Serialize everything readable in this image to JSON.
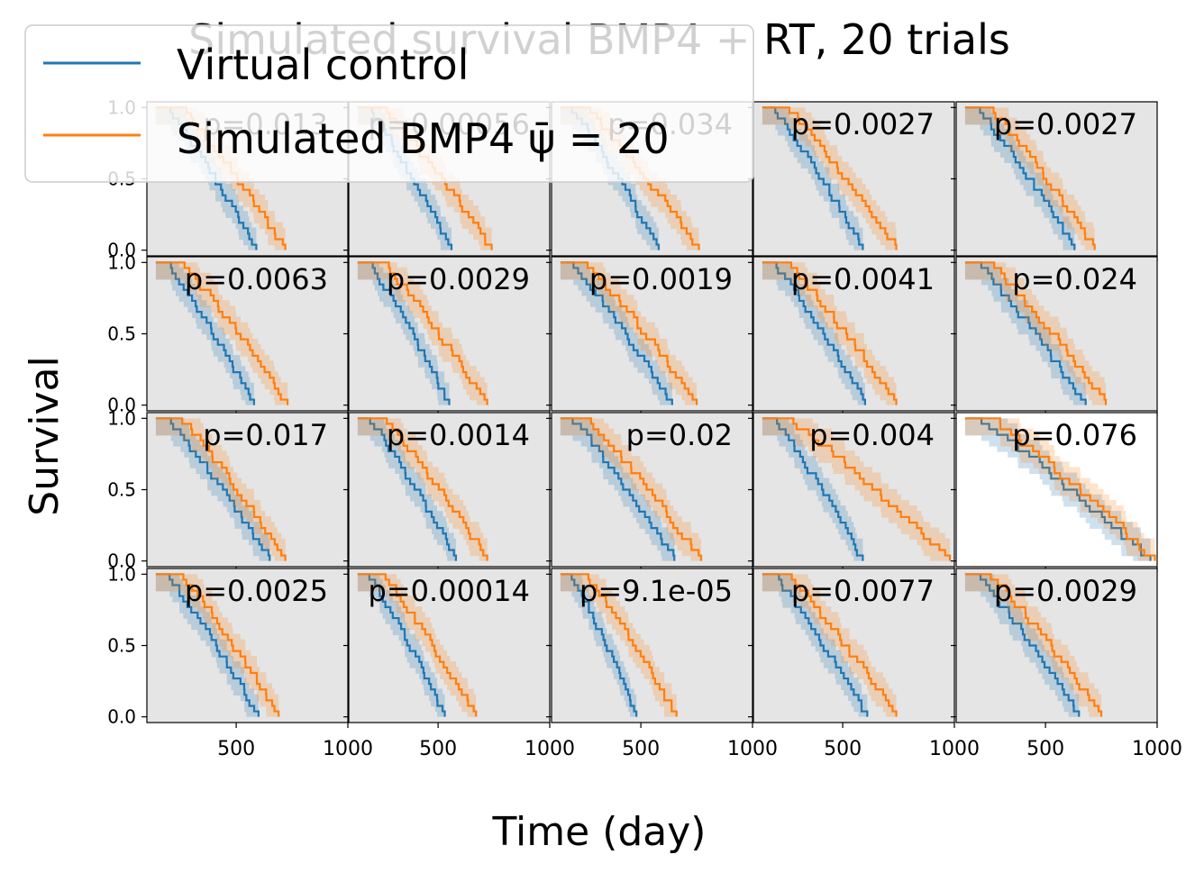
{
  "figure": {
    "title": "Simulated survival BMP4 + RT, 20 trials",
    "xlabel": "Time (day)",
    "ylabel": "Survival"
  },
  "legend": {
    "placement": "top-left",
    "entries": [
      {
        "label": "Virtual control",
        "color": "#1f77b4"
      },
      {
        "label": "Simulated BMP4 ψ̄ = 20",
        "color": "#ff7f0e"
      }
    ]
  },
  "chart_data": {
    "type": "line",
    "grid": "5x4 small multiples",
    "xlim": [
      100,
      1000
    ],
    "ylim": [
      -0.04,
      1.04
    ],
    "xticks": [
      500,
      1000
    ],
    "xtick_labels": [
      "500",
      "1000"
    ],
    "yticks": [
      0,
      0.5,
      1
    ],
    "ytick_labels": [
      "0.0",
      "0.5",
      "1.0"
    ],
    "series_colors": {
      "control": "#1f77b4",
      "treated": "#ff7f0e"
    },
    "panels": [
      {
        "p_label": "p=0.013",
        "shaded": true,
        "control_end": 590,
        "treated_end": 720
      },
      {
        "p_label": "p=0.00056",
        "shaded": true,
        "control_end": 560,
        "treated_end": 740
      },
      {
        "p_label": "p=0.034",
        "shaded": true,
        "control_end": 580,
        "treated_end": 760
      },
      {
        "p_label": "p=0.0027",
        "shaded": true,
        "control_end": 590,
        "treated_end": 740
      },
      {
        "p_label": "p=0.0027",
        "shaded": true,
        "control_end": 630,
        "treated_end": 720
      },
      {
        "p_label": "p=0.0063",
        "shaded": true,
        "control_end": 580,
        "treated_end": 730
      },
      {
        "p_label": "p=0.0029",
        "shaded": true,
        "control_end": 550,
        "treated_end": 720
      },
      {
        "p_label": "p=0.0019",
        "shaded": true,
        "control_end": 640,
        "treated_end": 750
      },
      {
        "p_label": "p=0.0041",
        "shaded": true,
        "control_end": 600,
        "treated_end": 740
      },
      {
        "p_label": "p=0.024",
        "shaded": true,
        "control_end": 680,
        "treated_end": 770
      },
      {
        "p_label": "p=0.017",
        "shaded": true,
        "control_end": 650,
        "treated_end": 720
      },
      {
        "p_label": "p=0.0014",
        "shaded": true,
        "control_end": 580,
        "treated_end": 720
      },
      {
        "p_label": "p=0.02",
        "shaded": true,
        "control_end": 650,
        "treated_end": 770
      },
      {
        "p_label": "p=0.004",
        "shaded": true,
        "control_end": 590,
        "treated_end": 980
      },
      {
        "p_label": "p=0.076",
        "shaded": false,
        "control_end": 970,
        "treated_end": 990
      },
      {
        "p_label": "p=0.0025",
        "shaded": true,
        "control_end": 600,
        "treated_end": 690
      },
      {
        "p_label": "p=0.00014",
        "shaded": true,
        "control_end": 530,
        "treated_end": 670
      },
      {
        "p_label": "p=9.1e-05",
        "shaded": true,
        "control_end": 480,
        "treated_end": 660
      },
      {
        "p_label": "p=0.0077",
        "shaded": true,
        "control_end": 610,
        "treated_end": 740
      },
      {
        "p_label": "p=0.0029",
        "shaded": true,
        "control_end": 650,
        "treated_end": 750
      }
    ]
  }
}
